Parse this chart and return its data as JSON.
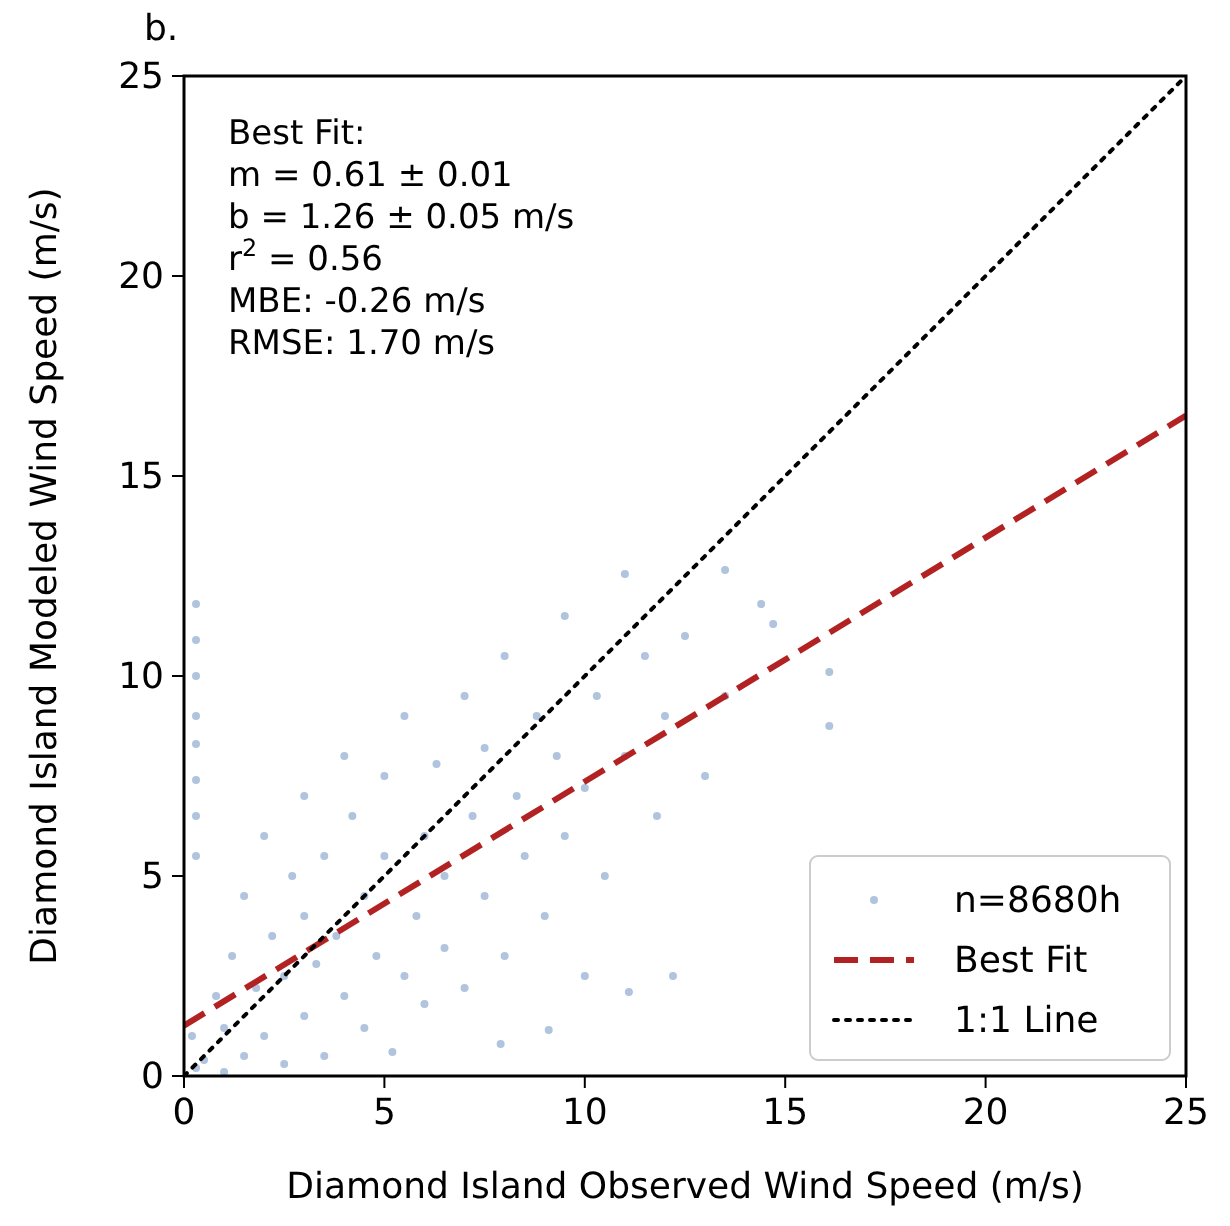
{
  "chart_data": {
    "type": "scatter",
    "title": "b.",
    "xlabel": "Diamond Island Observed Wind Speed (m/s)",
    "ylabel": "Diamond Island Modeled Wind Speed (m/s)",
    "xlim": [
      0,
      25
    ],
    "ylim": [
      0,
      25
    ],
    "xticks": [
      0,
      5,
      10,
      15,
      20,
      25
    ],
    "yticks": [
      0,
      5,
      10,
      15,
      20,
      25
    ],
    "grid": false,
    "legend": "bottom right",
    "annotations": [
      "Best Fit:",
      "m = 0.61 ± 0.01",
      "b = 1.26 ± 0.05 m/s",
      "r$^{2}$ = 0.56",
      "MBE: -0.26 m/s",
      "RMSE: 1.70 m/s"
    ],
    "series": [
      {
        "name": "n=8680h",
        "color": "#b0c4de",
        "marker": "circle",
        "x": [
          0.3,
          0.3,
          0.3,
          0.3,
          0.3,
          0.3,
          0.3,
          0.3,
          0.3,
          0.2,
          0.5,
          0.8,
          1.0,
          1.0,
          1.2,
          1.5,
          1.5,
          1.8,
          2.0,
          2.0,
          2.2,
          2.5,
          2.5,
          2.7,
          3.0,
          3.0,
          3.0,
          3.3,
          3.5,
          3.5,
          3.8,
          4.0,
          4.0,
          4.2,
          4.5,
          4.5,
          4.8,
          5.0,
          5.0,
          5.2,
          5.5,
          5.5,
          5.8,
          6.0,
          6.0,
          6.3,
          6.5,
          6.5,
          7.0,
          7.0,
          7.2,
          7.5,
          7.5,
          7.9,
          8.0,
          8.0,
          8.3,
          8.5,
          8.8,
          9.0,
          9.1,
          9.3,
          9.5,
          9.5,
          10.0,
          10.0,
          10.3,
          10.5,
          11.0,
          11.0,
          11.1,
          11.5,
          11.8,
          12.0,
          12.2,
          12.5,
          13.0,
          13.5,
          13.5,
          14.4,
          14.7,
          16.1,
          16.1
        ],
        "values": [
          11.8,
          10.9,
          10.0,
          9.0,
          8.3,
          7.4,
          6.5,
          5.5,
          0.2,
          1.0,
          0.4,
          2.0,
          1.2,
          0.1,
          3.0,
          0.5,
          4.5,
          2.2,
          1.0,
          6.0,
          3.5,
          0.3,
          2.5,
          5.0,
          1.5,
          4.0,
          7.0,
          2.8,
          0.5,
          5.5,
          3.5,
          2.0,
          8.0,
          6.5,
          1.2,
          4.5,
          3.0,
          5.5,
          7.5,
          0.6,
          2.5,
          9.0,
          4.0,
          6.0,
          1.8,
          7.8,
          3.2,
          5.0,
          9.5,
          2.2,
          6.5,
          4.5,
          8.2,
          0.8,
          3.0,
          10.5,
          7.0,
          5.5,
          9.0,
          4.0,
          1.15,
          8.0,
          11.5,
          6.0,
          7.2,
          2.5,
          9.5,
          5.0,
          12.55,
          8.0,
          2.1,
          10.5,
          6.5,
          9.0,
          2.5,
          11.0,
          7.5,
          12.65,
          9.5,
          11.8,
          11.3,
          10.1,
          8.75
        ]
      },
      {
        "name": "Best Fit",
        "type": "line",
        "color": "#b22222",
        "line_style": "dashed",
        "x": [
          0,
          25
        ],
        "values": [
          1.26,
          16.51
        ]
      },
      {
        "name": "1:1 Line",
        "type": "line",
        "color": "#000000",
        "line_style": "dotted",
        "x": [
          0,
          25
        ],
        "values": [
          0,
          25
        ]
      }
    ]
  }
}
